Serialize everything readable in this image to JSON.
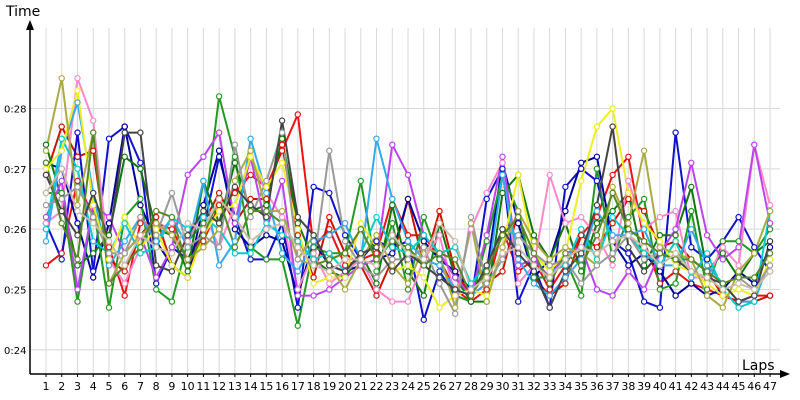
{
  "chart_data": {
    "type": "line",
    "ylabel": "Time",
    "xlabel": "Laps",
    "x": [
      1,
      2,
      3,
      4,
      5,
      6,
      7,
      8,
      9,
      10,
      11,
      12,
      13,
      14,
      15,
      16,
      17,
      18,
      19,
      20,
      21,
      22,
      23,
      24,
      25,
      26,
      27,
      28,
      29,
      30,
      31,
      32,
      33,
      34,
      35,
      36,
      37,
      38,
      39,
      40,
      41,
      42,
      43,
      44,
      45,
      46,
      47
    ],
    "ylim": [
      23.6,
      29.5
    ],
    "yticks": [
      24,
      25,
      26,
      27,
      28
    ],
    "ytick_labels": [
      "0:24",
      "0:25",
      "0:26",
      "0:27",
      "0:28"
    ],
    "grid": true,
    "series": [
      {
        "color": "#ee1111",
        "values": [
          25.4,
          25.6,
          26.8,
          26.2,
          25.7,
          24.9,
          26.1,
          26.1,
          26.0,
          25.5,
          25.8,
          26.4,
          26.6,
          26.9,
          26.7,
          27.3,
          27.9,
          25.7,
          26.0,
          25.4,
          25.5,
          25.6,
          26.5,
          25.9,
          25.9,
          25.5,
          25.0,
          24.8,
          25.0,
          26.0,
          25.3,
          25.5,
          25.0,
          25.4,
          25.9,
          26.2,
          26.9,
          27.2,
          25.8,
          25.1,
          25.3,
          25.1,
          25.0,
          24.9,
          24.8,
          24.9,
          24.9
        ]
      },
      {
        "color": "#cc1100",
        "values": [
          26.9,
          27.7,
          27.2,
          27.3,
          25.5,
          25.3,
          25.9,
          26.2,
          25.4,
          25.2,
          26.1,
          26.6,
          26.1,
          26.5,
          26.5,
          27.4,
          25.9,
          25.2,
          26.2,
          25.6,
          25.4,
          24.9,
          25.5,
          26.5,
          25.4,
          26.3,
          25.3,
          24.9,
          25.1,
          25.3,
          26.3,
          25.2,
          24.9,
          25.1,
          25.9,
          25.7,
          26.1,
          26.5,
          26.3,
          25.7,
          25.8,
          25.5,
          25.3,
          24.9,
          24.8,
          24.8,
          24.9
        ]
      },
      {
        "color": "#1111cc",
        "values": [
          26.1,
          25.5,
          27.6,
          25.3,
          27.5,
          27.7,
          27.1,
          25.1,
          25.7,
          25.5,
          26.0,
          27.2,
          26.2,
          25.5,
          25.5,
          26.1,
          24.7,
          26.7,
          26.6,
          25.9,
          25.5,
          25.8,
          25.7,
          25.8,
          24.5,
          25.3,
          24.9,
          24.8,
          26.5,
          27.0,
          24.8,
          25.4,
          24.7,
          26.7,
          27.0,
          26.8,
          25.8,
          25.6,
          24.8,
          24.7,
          27.6,
          25.7,
          25.5,
          25.8,
          26.2,
          25.7,
          25.3
        ]
      },
      {
        "color": "#000099",
        "values": [
          27.1,
          27.0,
          26.1,
          25.2,
          26.1,
          27.7,
          26.4,
          25.8,
          25.4,
          25.2,
          26.4,
          27.3,
          26.0,
          25.7,
          25.9,
          25.8,
          24.9,
          25.8,
          25.4,
          25.3,
          25.4,
          25.5,
          25.6,
          26.5,
          25.8,
          25.5,
          25.3,
          25.0,
          25.3,
          27.1,
          26.1,
          25.2,
          25.5,
          26.3,
          27.1,
          27.2,
          25.8,
          25.4,
          25.6,
          25.3,
          24.9,
          25.1,
          24.9,
          25.0,
          25.3,
          25.1,
          25.7
        ]
      },
      {
        "color": "#229922",
        "values": [
          26.6,
          26.6,
          24.8,
          26.4,
          24.7,
          26.2,
          26.5,
          25.0,
          24.8,
          25.8,
          26.1,
          28.2,
          27.2,
          25.7,
          25.5,
          25.5,
          24.4,
          25.7,
          25.6,
          25.6,
          26.8,
          25.3,
          26.1,
          25.0,
          26.2,
          25.5,
          24.9,
          24.8,
          25.8,
          26.9,
          26.3,
          25.2,
          25.2,
          25.5,
          24.9,
          27.0,
          25.5,
          26.2,
          26.5,
          25.0,
          25.1,
          26.3,
          25.0,
          25.8,
          25.8,
          25.6,
          26.0
        ]
      },
      {
        "color": "#117711",
        "values": [
          27.4,
          26.5,
          25.4,
          25.6,
          25.9,
          27.2,
          27.0,
          26.0,
          25.9,
          25.3,
          26.8,
          26.1,
          27.1,
          26.3,
          26.4,
          27.5,
          26.1,
          25.5,
          25.3,
          25.2,
          25.6,
          25.1,
          26.4,
          25.3,
          24.9,
          26.1,
          25.2,
          24.8,
          24.8,
          26.6,
          26.9,
          25.9,
          25.5,
          26.1,
          25.3,
          26.1,
          26.3,
          26.6,
          25.4,
          25.9,
          25.9,
          26.7,
          25.3,
          25.6,
          25.2,
          25.6,
          25.8
        ]
      },
      {
        "color": "#ff88cc",
        "values": [
          26.1,
          26.3,
          28.5,
          27.8,
          25.5,
          25.1,
          25.7,
          26.0,
          26.1,
          25.8,
          26.3,
          25.7,
          26.4,
          27.2,
          26.6,
          26.2,
          25.0,
          25.6,
          25.1,
          25.3,
          25.5,
          25.0,
          24.8,
          24.8,
          25.5,
          25.9,
          24.9,
          26.0,
          26.6,
          27.1,
          25.1,
          25.4,
          26.9,
          26.1,
          26.2,
          25.9,
          25.4,
          26.8,
          26.0,
          26.2,
          26.3,
          25.2,
          25.2,
          25.7,
          25.4,
          27.4,
          26.4
        ]
      },
      {
        "color": "#bb44ee",
        "values": [
          26.2,
          26.8,
          25.0,
          26.4,
          26.2,
          25.6,
          25.9,
          25.2,
          25.7,
          26.9,
          27.2,
          27.6,
          26.1,
          27.2,
          26.0,
          26.8,
          24.9,
          24.9,
          25.0,
          25.2,
          25.4,
          25.5,
          27.4,
          26.9,
          25.9,
          25.6,
          25.2,
          24.9,
          25.9,
          27.2,
          25.4,
          25.5,
          25.2,
          25.6,
          25.7,
          25.0,
          24.9,
          25.3,
          25.0,
          25.6,
          26.0,
          27.1,
          25.9,
          25.5,
          25.7,
          27.4,
          26.1
        ]
      },
      {
        "color": "#33aaee",
        "values": [
          25.8,
          27.3,
          28.1,
          26.6,
          25.4,
          25.8,
          26.2,
          25.8,
          26.2,
          25.7,
          26.8,
          25.4,
          25.8,
          27.5,
          26.6,
          25.6,
          25.3,
          25.8,
          25.9,
          26.1,
          25.5,
          27.5,
          26.5,
          25.8,
          25.5,
          25.4,
          25.0,
          24.9,
          25.1,
          26.9,
          25.5,
          25.1,
          24.9,
          25.2,
          25.5,
          26.3,
          25.9,
          25.9,
          26.0,
          25.4,
          25.4,
          26.0,
          25.4,
          25.1,
          24.8,
          24.8,
          25.5
        ]
      },
      {
        "color": "#00cccc",
        "values": [
          26.0,
          27.5,
          27.0,
          25.8,
          25.6,
          26.1,
          25.6,
          25.7,
          26.2,
          26.0,
          26.2,
          26.0,
          25.6,
          25.6,
          26.1,
          25.9,
          25.8,
          25.5,
          25.6,
          25.3,
          25.6,
          26.2,
          25.7,
          25.6,
          25.9,
          25.6,
          25.7,
          25.1,
          25.4,
          26.0,
          25.9,
          25.6,
          25.3,
          25.4,
          26.0,
          25.5,
          26.2,
          25.9,
          25.6,
          25.4,
          25.8,
          25.2,
          25.6,
          25.0,
          24.7,
          24.8,
          26.3
        ]
      },
      {
        "color": "#eeee22",
        "values": [
          27.0,
          27.3,
          28.3,
          26.4,
          25.5,
          26.2,
          25.7,
          26.0,
          25.4,
          25.2,
          25.9,
          26.3,
          26.4,
          27.2,
          26.7,
          27.1,
          26.0,
          25.1,
          25.2,
          25.2,
          26.1,
          25.7,
          25.3,
          25.4,
          25.2,
          24.7,
          24.9,
          25.0,
          24.9,
          25.7,
          26.9,
          25.6,
          25.3,
          25.6,
          26.8,
          27.7,
          28.0,
          26.6,
          26.1,
          25.8,
          25.4,
          25.3,
          25.1,
          24.9,
          25.0,
          24.9,
          25.5
        ]
      },
      {
        "color": "#aaaa44",
        "values": [
          27.3,
          28.5,
          26.4,
          27.6,
          25.1,
          25.6,
          25.9,
          26.1,
          25.9,
          25.5,
          25.7,
          26.0,
          26.8,
          27.3,
          26.3,
          26.3,
          25.5,
          25.9,
          25.4,
          25.0,
          25.5,
          25.9,
          25.4,
          25.1,
          25.7,
          25.6,
          24.7,
          26.1,
          24.8,
          25.7,
          26.3,
          25.8,
          25.5,
          25.7,
          25.6,
          25.4,
          26.7,
          26.1,
          27.3,
          25.7,
          25.6,
          25.5,
          24.9,
          24.7,
          25.3,
          25.6,
          26.3
        ]
      },
      {
        "color": "#999999",
        "values": [
          26.4,
          26.5,
          26.7,
          26.2,
          25.6,
          25.6,
          26.2,
          25.9,
          26.6,
          25.7,
          25.9,
          25.7,
          27.4,
          26.2,
          26.8,
          27.6,
          25.5,
          25.4,
          27.3,
          25.8,
          25.4,
          25.2,
          25.5,
          25.5,
          25.7,
          25.1,
          24.6,
          26.2,
          25.1,
          25.5,
          25.9,
          25.6,
          25.4,
          25.5,
          25.1,
          25.4,
          25.6,
          25.9,
          25.5,
          25.6,
          25.5,
          25.3,
          25.2,
          25.1,
          25.2,
          25.0,
          25.4
        ]
      },
      {
        "color": "#444444",
        "values": [
          26.9,
          26.3,
          25.9,
          26.6,
          25.8,
          27.6,
          27.6,
          25.4,
          25.3,
          25.9,
          26.3,
          26.1,
          26.7,
          26.4,
          26.2,
          27.8,
          26.2,
          25.9,
          25.4,
          25.3,
          25.6,
          25.7,
          25.3,
          25.6,
          25.4,
          25.2,
          25.0,
          24.9,
          25.4,
          26.0,
          25.6,
          25.3,
          24.7,
          25.3,
          25.6,
          26.4,
          27.7,
          25.7,
          25.3,
          25.6,
          25.5,
          25.3,
          25.2,
          25.1,
          24.8,
          24.9,
          25.8
        ]
      },
      {
        "color": "#558822",
        "values": [
          27.1,
          26.1,
          25.5,
          27.6,
          25.1,
          25.4,
          25.7,
          26.3,
          26.2,
          25.4,
          25.9,
          26.5,
          25.7,
          26.3,
          26.3,
          26.1,
          25.7,
          25.4,
          25.5,
          25.6,
          26.0,
          25.5,
          25.8,
          25.7,
          25.4,
          25.6,
          25.5,
          24.9,
          25.3,
          25.9,
          26.2,
          25.6,
          25.1,
          25.6,
          25.4,
          25.9,
          26.6,
          26.0,
          25.8,
          25.6,
          25.5,
          25.5,
          25.3,
          25.1,
          25.2,
          25.2,
          25.6
        ]
      },
      {
        "color": "#ccbbaa",
        "values": [
          26.6,
          27.0,
          26.3,
          26.1,
          25.8,
          25.4,
          25.9,
          25.7,
          25.6,
          26.1,
          26.0,
          26.5,
          26.2,
          25.8,
          26.0,
          26.1,
          25.7,
          25.4,
          25.3,
          25.5,
          25.5,
          25.4,
          25.9,
          25.6,
          25.5,
          26.1,
          25.8,
          25.0,
          25.2,
          25.6,
          25.7,
          25.4,
          25.2,
          25.5,
          25.7,
          25.6,
          25.8,
          25.9,
          25.7,
          25.4,
          25.6,
          25.3,
          25.2,
          25.0,
          25.1,
          25.0,
          25.3
        ]
      }
    ]
  }
}
